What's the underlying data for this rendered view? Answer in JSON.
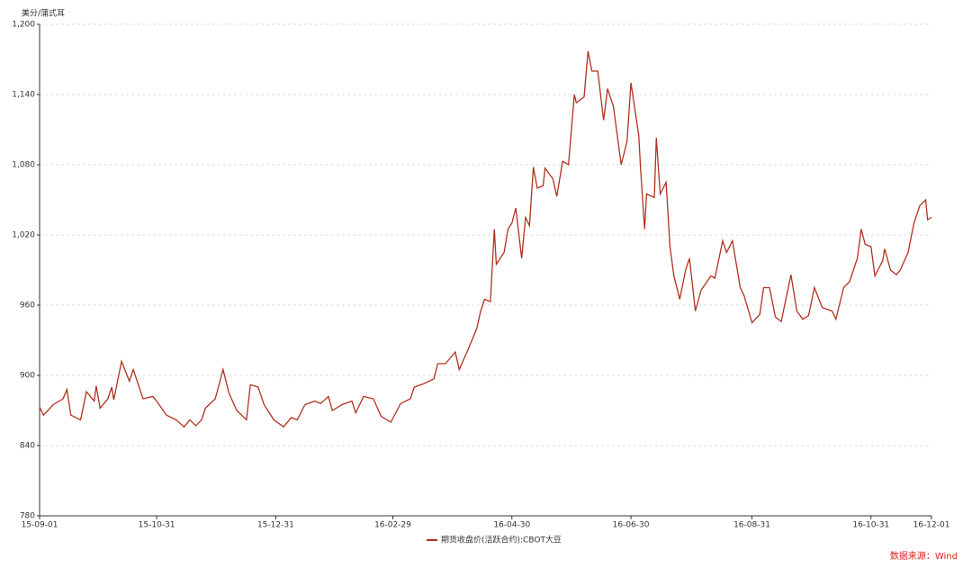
{
  "chart_data": {
    "type": "line",
    "y_axis_label": "美分/蒲式耳",
    "source": "数据来源：Wind",
    "grid": true,
    "xlim": [
      "15-09-01",
      "16-12-01"
    ],
    "xticks": [
      "15-09-01",
      "15-10-31",
      "15-12-31",
      "16-02-29",
      "16-04-30",
      "16-06-30",
      "16-08-31",
      "16-10-31",
      "16-12-01"
    ],
    "ylim": [
      780,
      1200
    ],
    "yticks": [
      780,
      840,
      900,
      960,
      {
        "value": 1020,
        "label": "1,020"
      },
      {
        "value": 1080,
        "label": "1,080"
      },
      {
        "value": 1140,
        "label": "1,140"
      },
      {
        "value": 1200,
        "label": "1,200"
      }
    ],
    "x": [
      "15-09-01",
      "15-09-03",
      "15-09-08",
      "15-09-13",
      "15-09-15",
      "15-09-17",
      "15-09-22",
      "15-09-25",
      "15-09-29",
      "15-09-30",
      "15-10-02",
      "15-10-06",
      "15-10-08",
      "15-10-09",
      "15-10-13",
      "15-10-17",
      "15-10-19",
      "15-10-24",
      "15-10-29",
      "15-10-31",
      "15-11-05",
      "15-11-10",
      "15-11-14",
      "15-11-17",
      "15-11-20",
      "15-11-23",
      "15-11-25",
      "15-11-30",
      "15-12-04",
      "15-12-07",
      "15-12-11",
      "15-12-16",
      "15-12-18",
      "15-12-22",
      "15-12-25",
      "15-12-30",
      "16-01-04",
      "16-01-08",
      "16-01-11",
      "16-01-15",
      "16-01-20",
      "16-01-23",
      "16-01-27",
      "16-01-29",
      "16-02-03",
      "16-02-08",
      "16-02-10",
      "16-02-14",
      "16-02-19",
      "16-02-23",
      "16-02-28",
      "16-03-04",
      "16-03-09",
      "16-03-11",
      "16-03-16",
      "16-03-21",
      "16-03-23",
      "16-03-27",
      "16-04-01",
      "16-04-03",
      "16-04-07",
      "16-04-12",
      "16-04-14",
      "16-04-16",
      "16-04-19",
      "16-04-21",
      "16-04-22",
      "16-04-26",
      "16-04-28",
      "16-04-30",
      "16-05-02",
      "16-05-05",
      "16-05-07",
      "16-05-09",
      "16-05-11",
      "16-05-13",
      "16-05-16",
      "16-05-17",
      "16-05-21",
      "16-05-23",
      "16-05-26",
      "16-05-29",
      "16-06-01",
      "16-06-02",
      "16-06-06",
      "16-06-08",
      "16-06-10",
      "16-06-13",
      "16-06-16",
      "16-06-18",
      "16-06-21",
      "16-06-25",
      "16-06-28",
      "16-06-30",
      "16-07-04",
      "16-07-05",
      "16-07-07",
      "16-07-08",
      "16-07-12",
      "16-07-13",
      "16-07-15",
      "16-07-18",
      "16-07-20",
      "16-07-22",
      "16-07-25",
      "16-07-28",
      "16-07-30",
      "16-08-02",
      "16-08-05",
      "16-08-10",
      "16-08-12",
      "16-08-16",
      "16-08-18",
      "16-08-21",
      "16-08-25",
      "16-08-27",
      "16-08-31",
      "16-09-04",
      "16-09-06",
      "16-09-09",
      "16-09-12",
      "16-09-15",
      "16-09-18",
      "16-09-20",
      "16-09-23",
      "16-09-26",
      "16-09-29",
      "16-10-02",
      "16-10-06",
      "16-10-11",
      "16-10-13",
      "16-10-17",
      "16-10-20",
      "16-10-24",
      "16-10-26",
      "16-10-28",
      "16-10-31",
      "16-11-02",
      "16-11-06",
      "16-11-07",
      "16-11-10",
      "16-11-13",
      "16-11-15",
      "16-11-19",
      "16-11-22",
      "16-11-25",
      "16-11-28",
      "16-11-29",
      "16-12-01"
    ],
    "series": [
      {
        "name": "期货收盘价(活跃合约):CBOT大豆",
        "color": "#b03220",
        "values": [
          873,
          866,
          875,
          880,
          888,
          866,
          862,
          886,
          878,
          891,
          872,
          880,
          890,
          879,
          912,
          895,
          905,
          880,
          882,
          878,
          866,
          862,
          856,
          862,
          857,
          862,
          872,
          880,
          905,
          885,
          870,
          862,
          892,
          890,
          875,
          862,
          856,
          864,
          862,
          875,
          878,
          876,
          882,
          870,
          875,
          878,
          868,
          882,
          880,
          865,
          860,
          876,
          880,
          890,
          893,
          897,
          910,
          910,
          920,
          905,
          920,
          940,
          955,
          965,
          963,
          1025,
          995,
          1005,
          1025,
          1030,
          1043,
          1000,
          1035,
          1028,
          1078,
          1060,
          1062,
          1077,
          1068,
          1053,
          1083,
          1080,
          1140,
          1133,
          1138,
          1177,
          1160,
          1160,
          1118,
          1145,
          1130,
          1080,
          1100,
          1150,
          1105,
          1075,
          1025,
          1055,
          1052,
          1103,
          1055,
          1065,
          1010,
          985,
          965,
          990,
          1000,
          955,
          973,
          985,
          983,
          1015,
          1005,
          1015,
          975,
          968,
          945,
          952,
          975,
          975,
          950,
          946,
          970,
          986,
          955,
          948,
          951,
          975,
          958,
          955,
          948,
          975,
          980,
          1000,
          1025,
          1012,
          1010,
          985,
          998,
          1008,
          990,
          986,
          990,
          1005,
          1030,
          1045,
          1050,
          1033,
          1035
        ]
      }
    ]
  }
}
